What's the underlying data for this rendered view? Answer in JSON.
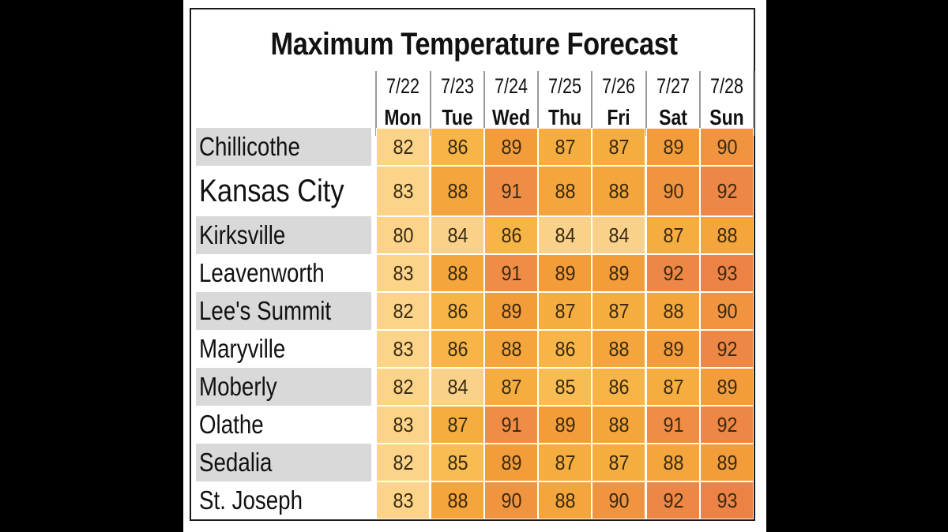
{
  "chart_data": {
    "type": "table",
    "title": "Maximum Temperature Forecast",
    "columns": [
      {
        "date": "7/22",
        "day": "Mon"
      },
      {
        "date": "7/23",
        "day": "Tue"
      },
      {
        "date": "7/24",
        "day": "Wed"
      },
      {
        "date": "7/25",
        "day": "Thu"
      },
      {
        "date": "7/26",
        "day": "Fri"
      },
      {
        "date": "7/27",
        "day": "Sat"
      },
      {
        "date": "7/28",
        "day": "Sun"
      }
    ],
    "rows": [
      {
        "city": "Chillicothe",
        "values": [
          82,
          86,
          89,
          87,
          87,
          89,
          90
        ]
      },
      {
        "city": "Kansas City",
        "values": [
          83,
          88,
          91,
          88,
          88,
          90,
          92
        ],
        "emphasis": true
      },
      {
        "city": "Kirksville",
        "values": [
          80,
          84,
          86,
          84,
          84,
          87,
          88
        ]
      },
      {
        "city": "Leavenworth",
        "values": [
          83,
          88,
          91,
          89,
          89,
          92,
          93
        ]
      },
      {
        "city": "Lee's Summit",
        "values": [
          82,
          86,
          89,
          87,
          87,
          88,
          90
        ]
      },
      {
        "city": "Maryville",
        "values": [
          83,
          86,
          88,
          86,
          88,
          89,
          92
        ]
      },
      {
        "city": "Moberly",
        "values": [
          82,
          84,
          87,
          85,
          86,
          87,
          89
        ]
      },
      {
        "city": "Olathe",
        "values": [
          83,
          87,
          91,
          89,
          88,
          91,
          92
        ]
      },
      {
        "city": "Sedalia",
        "values": [
          82,
          85,
          89,
          87,
          87,
          88,
          89
        ]
      },
      {
        "city": "St. Joseph",
        "values": [
          83,
          88,
          90,
          88,
          90,
          92,
          93
        ]
      }
    ],
    "color_scale": {
      "80": "#fbd48a",
      "82": "#fbd48a",
      "83": "#fbd48a",
      "84": "#fad18a",
      "85": "#f7bd52",
      "86": "#f6b546",
      "87": "#f5ad3f",
      "88": "#f4a53b",
      "89": "#f39c3a",
      "90": "#f19440",
      "91": "#ef8c45",
      "92": "#ee8745",
      "93": "#ed8246"
    },
    "row_shade_color": "#d9d9d9"
  }
}
